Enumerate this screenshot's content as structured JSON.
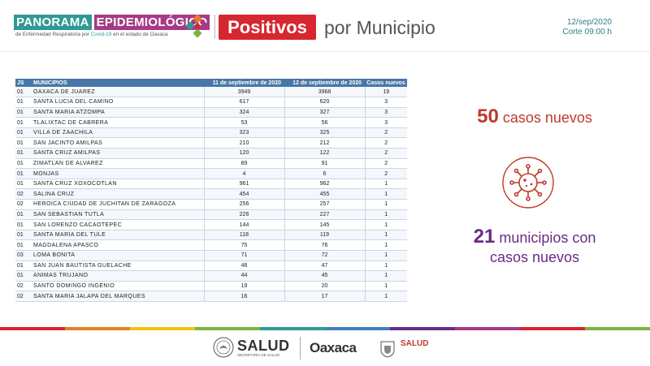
{
  "header": {
    "brand_word1": "PANORAMA",
    "brand_word2": "EPIDEMIOLÓGICO",
    "brand_sub_pre": "de Enfermedad Respiratoria por ",
    "brand_sub_hl": "Covid-19",
    "brand_sub_post": " en el estado de Oaxaca",
    "title_box": "Positivos",
    "title_rest": "por Municipio",
    "date": "12/sep/2020",
    "cutoff": "Corte 09:00 h"
  },
  "table": {
    "headers": [
      "JS",
      "MUNICIPIOS",
      "11 de septiembre de 2020",
      "12 de septiembre de 2020",
      "Casos nuevos"
    ],
    "rows": [
      [
        "01",
        "OAXACA DE JUAREZ",
        "3949",
        "3968",
        "19"
      ],
      [
        "01",
        "SANTA LUCIA DEL CAMINO",
        "617",
        "620",
        "3"
      ],
      [
        "01",
        "SANTA MARIA ATZOMPA",
        "324",
        "327",
        "3"
      ],
      [
        "01",
        "TLALIXTAC DE CABRERA",
        "53",
        "56",
        "3"
      ],
      [
        "01",
        "VILLA DE ZAACHILA",
        "323",
        "325",
        "2"
      ],
      [
        "01",
        "SAN JACINTO AMILPAS",
        "210",
        "212",
        "2"
      ],
      [
        "01",
        "SANTA CRUZ AMILPAS",
        "120",
        "122",
        "2"
      ],
      [
        "01",
        "ZIMATLAN DE ALVAREZ",
        "89",
        "91",
        "2"
      ],
      [
        "01",
        "MONJAS",
        "4",
        "6",
        "2"
      ],
      [
        "01",
        "SANTA CRUZ XOXOCOTLAN",
        "961",
        "962",
        "1"
      ],
      [
        "02",
        "SALINA CRUZ",
        "454",
        "455",
        "1"
      ],
      [
        "02",
        "HEROICA CIUDAD DE JUCHITAN DE ZARAGOZA",
        "256",
        "257",
        "1"
      ],
      [
        "01",
        "SAN SEBASTIAN TUTLA",
        "226",
        "227",
        "1"
      ],
      [
        "01",
        "SAN LORENZO CACAOTEPEC",
        "144",
        "145",
        "1"
      ],
      [
        "01",
        "SANTA MARIA DEL TULE",
        "118",
        "119",
        "1"
      ],
      [
        "01",
        "MAGDALENA APASCO",
        "75",
        "76",
        "1"
      ],
      [
        "03",
        "LOMA BONITA",
        "71",
        "72",
        "1"
      ],
      [
        "01",
        "SAN JUAN BAUTISTA GUELACHE",
        "46",
        "47",
        "1"
      ],
      [
        "01",
        "ANIMAS TRUJANO",
        "44",
        "45",
        "1"
      ],
      [
        "02",
        "SANTO DOMINGO INGENIO",
        "19",
        "20",
        "1"
      ],
      [
        "02",
        "SANTA MARIA JALAPA DEL MARQUES",
        "16",
        "17",
        "1"
      ]
    ]
  },
  "summary": {
    "new_cases_number": "50",
    "new_cases_label": "casos nuevos",
    "municipalities_number": "21",
    "municipalities_label_line1": "municipios con",
    "municipalities_label_line2": "casos nuevos"
  },
  "footer": {
    "salud_left": "SALUD",
    "salud_left_sub": "SECRETARÍA DE SALUD",
    "oaxaca": "Oaxaca",
    "salud_right": "SALUD"
  },
  "colors": {
    "teal": "#2f9a93",
    "purple": "#a73a87",
    "red": "#d6262f",
    "table_header": "#4777a6",
    "summary_red": "#c0392b",
    "summary_purple": "#6a2b85"
  },
  "stripe_colors": [
    "#d6262f",
    "#e67e22",
    "#f1c40f",
    "#7cb342",
    "#2f9a93",
    "#3f7fbf",
    "#6a2b85",
    "#a73a87",
    "#d6262f",
    "#7cb342"
  ]
}
